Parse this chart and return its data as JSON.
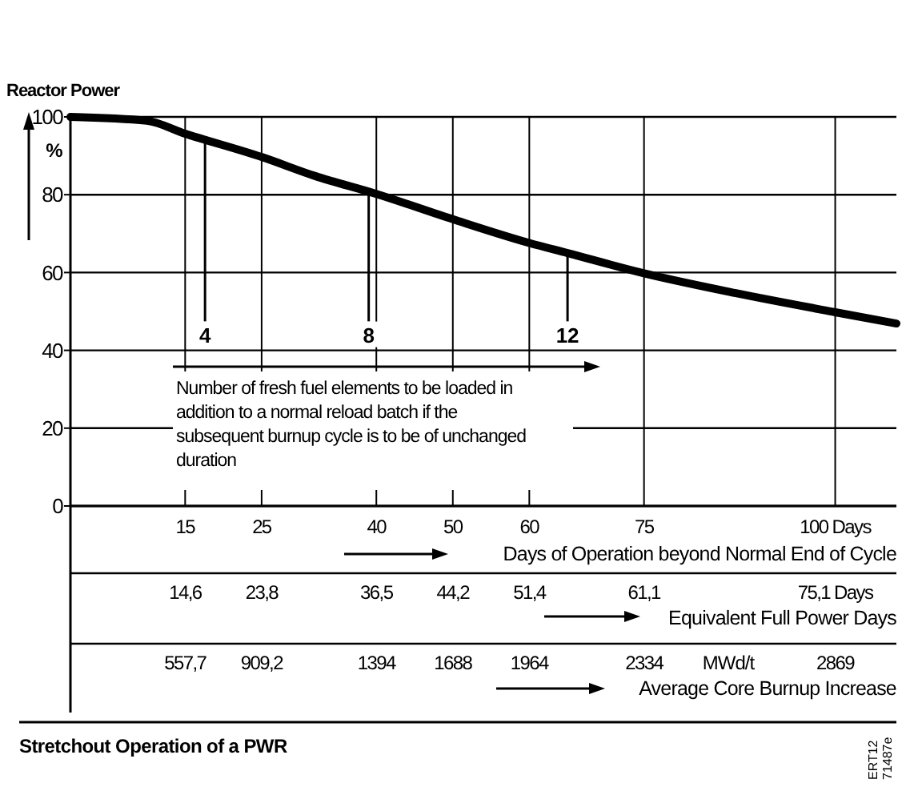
{
  "chart_data": {
    "type": "line",
    "title": "Stretchout Operation of a PWR",
    "ylabel": "Reactor Power",
    "xlabel": "Days of Operation beyond Normal End of Cycle",
    "x": [
      0,
      10,
      15,
      25,
      32,
      40,
      50,
      60,
      65,
      75,
      87,
      100,
      108
    ],
    "series": [
      {
        "color": "#000000",
        "values": [
          100,
          99,
          95.7,
          89.7,
          84.8,
          80.2,
          73.7,
          67.6,
          65,
          59.8,
          54.7,
          49.8,
          46.9
        ]
      }
    ],
    "xlim": [
      0,
      108
    ],
    "ylim": [
      0,
      100
    ],
    "xticks": [
      15,
      25,
      40,
      50,
      60,
      75,
      {
        "value": 100,
        "label": "100 Days"
      }
    ],
    "yticks": [
      0,
      20,
      40,
      60,
      80,
      100
    ],
    "grid": true,
    "marker": "none",
    "line_style": "solid",
    "annotations": [
      "Number of fresh fuel elements to be loaded in addition to a normal reload batch if the subsequent burnup cycle is to be of unchanged duration",
      "%",
      "MWd/t",
      "Average Core Burnup Increase",
      "ERT12 71487e",
      "Equivalent Full Power Days",
      "14,6",
      "23,8",
      "36,5",
      "44,2",
      "51,4",
      "61,1",
      "75,1 Days",
      "557,7",
      "909,2",
      "1394",
      "1688",
      "1964",
      "2334",
      "2869",
      {
        "text": "4",
        "x": 17.6,
        "y": 94.5
      },
      {
        "text": "8",
        "x": 39,
        "y": 80.7
      },
      {
        "text": "12",
        "x": 65,
        "y": 65
      }
    ]
  }
}
